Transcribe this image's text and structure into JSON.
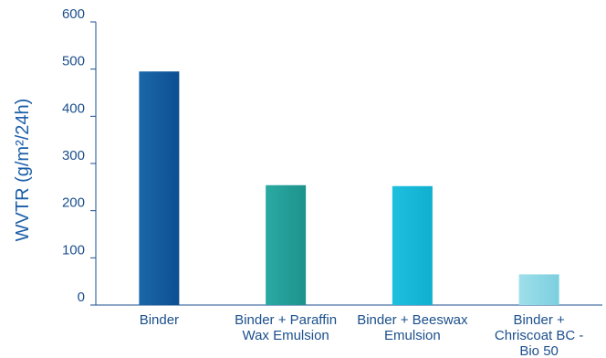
{
  "chart_data": {
    "type": "bar",
    "categories": [
      [
        "Binder"
      ],
      [
        "Binder + Paraffin",
        "Wax Emulsion"
      ],
      [
        "Binder + Beeswax",
        "Emulsion"
      ],
      [
        "Binder +",
        "Chriscoat BC -",
        "Bio 50"
      ]
    ],
    "values": [
      495,
      254,
      252,
      65
    ],
    "title": "",
    "xlabel": "",
    "ylabel": "WVTR (g/m²/24h)",
    "ylim": [
      0,
      600
    ],
    "yticks": [
      0,
      100,
      200,
      300,
      400,
      500,
      600
    ],
    "grid": false,
    "legend": "none",
    "colors": {
      "axis": "#1b4f8c",
      "text": "#1b4f8c",
      "ylabel": "#1b5ea8",
      "bars": [
        [
          "#1a67a8",
          "#0d4f93"
        ],
        [
          "#2aaaa2",
          "#1e928d"
        ],
        [
          "#1ec0de",
          "#10afd0"
        ],
        [
          "#9fdfea",
          "#7ccfe0"
        ]
      ]
    }
  }
}
